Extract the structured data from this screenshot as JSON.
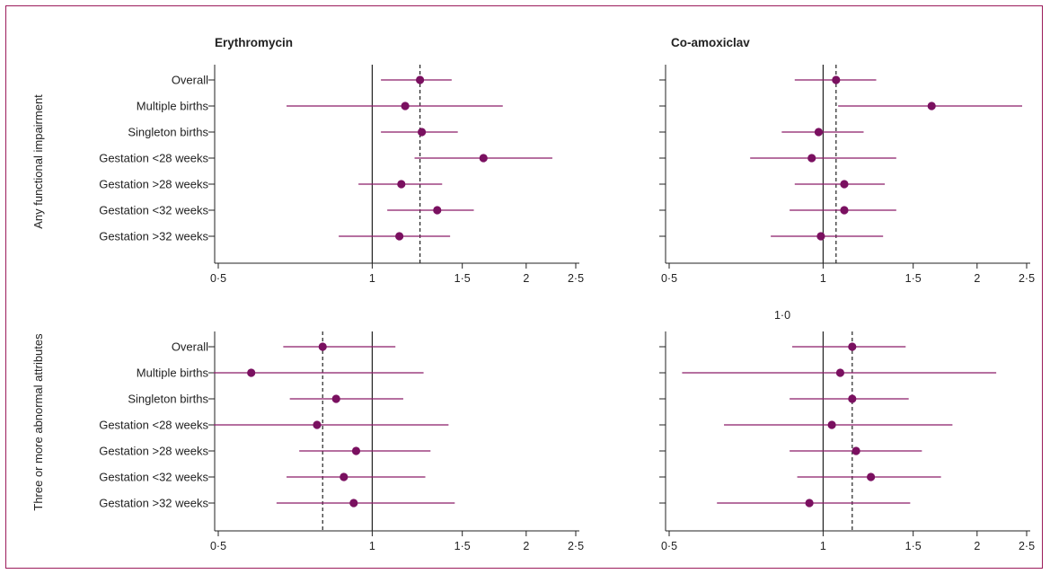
{
  "row_titles": [
    "Any functional impairment",
    "Three or more abnormal attributes"
  ],
  "col_titles": [
    "Erythromycin",
    "Co-amoxiclav"
  ],
  "extra_label": "1·0",
  "chart_data": [
    {
      "type": "forest",
      "title": "Erythromycin",
      "row_title": "Any functional impairment",
      "scale": "log",
      "xlim": [
        0.5,
        2.5
      ],
      "xticks": [
        0.5,
        1,
        1.5,
        2,
        2.5
      ],
      "xtick_labels": [
        "0·5",
        "1",
        "1·5",
        "2",
        "2·5"
      ],
      "reference": 1,
      "overall_reference": 1.24,
      "categories": [
        "Overall",
        "Multiple births",
        "Singleton births",
        "Gestation <28 weeks",
        "Gestation >28 weeks",
        "Gestation <32 weeks",
        "Gestation >32 weeks"
      ],
      "estimates": [
        1.24,
        1.16,
        1.25,
        1.65,
        1.14,
        1.34,
        1.13
      ],
      "lower": [
        1.04,
        0.68,
        1.04,
        1.21,
        0.94,
        1.07,
        0.86
      ],
      "upper": [
        1.43,
        1.8,
        1.47,
        2.25,
        1.37,
        1.58,
        1.42
      ]
    },
    {
      "type": "forest",
      "title": "Co-amoxiclav",
      "row_title": "Any functional impairment",
      "scale": "log",
      "xlim": [
        0.5,
        2.5
      ],
      "xticks": [
        0.5,
        1,
        1.5,
        2,
        2.5
      ],
      "xtick_labels": [
        "0·5",
        "1",
        "1·5",
        "2",
        "2·5"
      ],
      "reference": 1,
      "overall_reference": 1.06,
      "categories": [
        "Overall",
        "Multiple births",
        "Singleton births",
        "Gestation <28 weeks",
        "Gestation >28 weeks",
        "Gestation <32 weeks",
        "Gestation >32 weeks"
      ],
      "estimates": [
        1.06,
        1.63,
        0.98,
        0.95,
        1.1,
        1.1,
        0.99
      ],
      "lower": [
        0.88,
        1.07,
        0.83,
        0.72,
        0.88,
        0.86,
        0.79
      ],
      "upper": [
        1.27,
        2.45,
        1.2,
        1.39,
        1.32,
        1.39,
        1.31
      ]
    },
    {
      "type": "forest",
      "title": "Erythromycin",
      "row_title": "Three or more abnormal attributes",
      "scale": "log",
      "xlim": [
        0.5,
        2.5
      ],
      "xticks": [
        0.5,
        1,
        1.5,
        2,
        2.5
      ],
      "xtick_labels": [
        "0·5",
        "1",
        "1·5",
        "2",
        "2·5"
      ],
      "reference": 1,
      "overall_reference": 0.8,
      "categories": [
        "Overall",
        "Multiple births",
        "Singleton births",
        "Gestation <28 weeks",
        "Gestation >28 weeks",
        "Gestation <32 weeks",
        "Gestation >32 weeks"
      ],
      "estimates": [
        0.8,
        0.58,
        0.85,
        0.78,
        0.93,
        0.88,
        0.92
      ],
      "lower": [
        0.67,
        0.49,
        0.69,
        0.49,
        0.72,
        0.68,
        0.65
      ],
      "upper": [
        1.11,
        1.26,
        1.15,
        1.41,
        1.3,
        1.27,
        1.45
      ]
    },
    {
      "type": "forest",
      "title": "Co-amoxiclav",
      "row_title": "Three or more abnormal attributes",
      "scale": "log",
      "xlim": [
        0.5,
        2.5
      ],
      "xticks": [
        0.5,
        1,
        1.5,
        2,
        2.5
      ],
      "xtick_labels": [
        "0·5",
        "1",
        "1·5",
        "2",
        "2·5"
      ],
      "reference": 1,
      "overall_reference": 1.14,
      "categories": [
        "Overall",
        "Multiple births",
        "Singleton births",
        "Gestation <28 weeks",
        "Gestation >28 weeks",
        "Gestation <32 weeks",
        "Gestation >32 weeks"
      ],
      "estimates": [
        1.14,
        1.08,
        1.14,
        1.04,
        1.16,
        1.24,
        0.94
      ],
      "lower": [
        0.87,
        0.53,
        0.86,
        0.64,
        0.86,
        0.89,
        0.62
      ],
      "upper": [
        1.45,
        2.18,
        1.47,
        1.79,
        1.56,
        1.7,
        1.48
      ]
    }
  ],
  "colors": {
    "point": "#7a1060",
    "ci": "#8b1a68",
    "frame": "#9b1b5a",
    "axis": "#222222"
  }
}
